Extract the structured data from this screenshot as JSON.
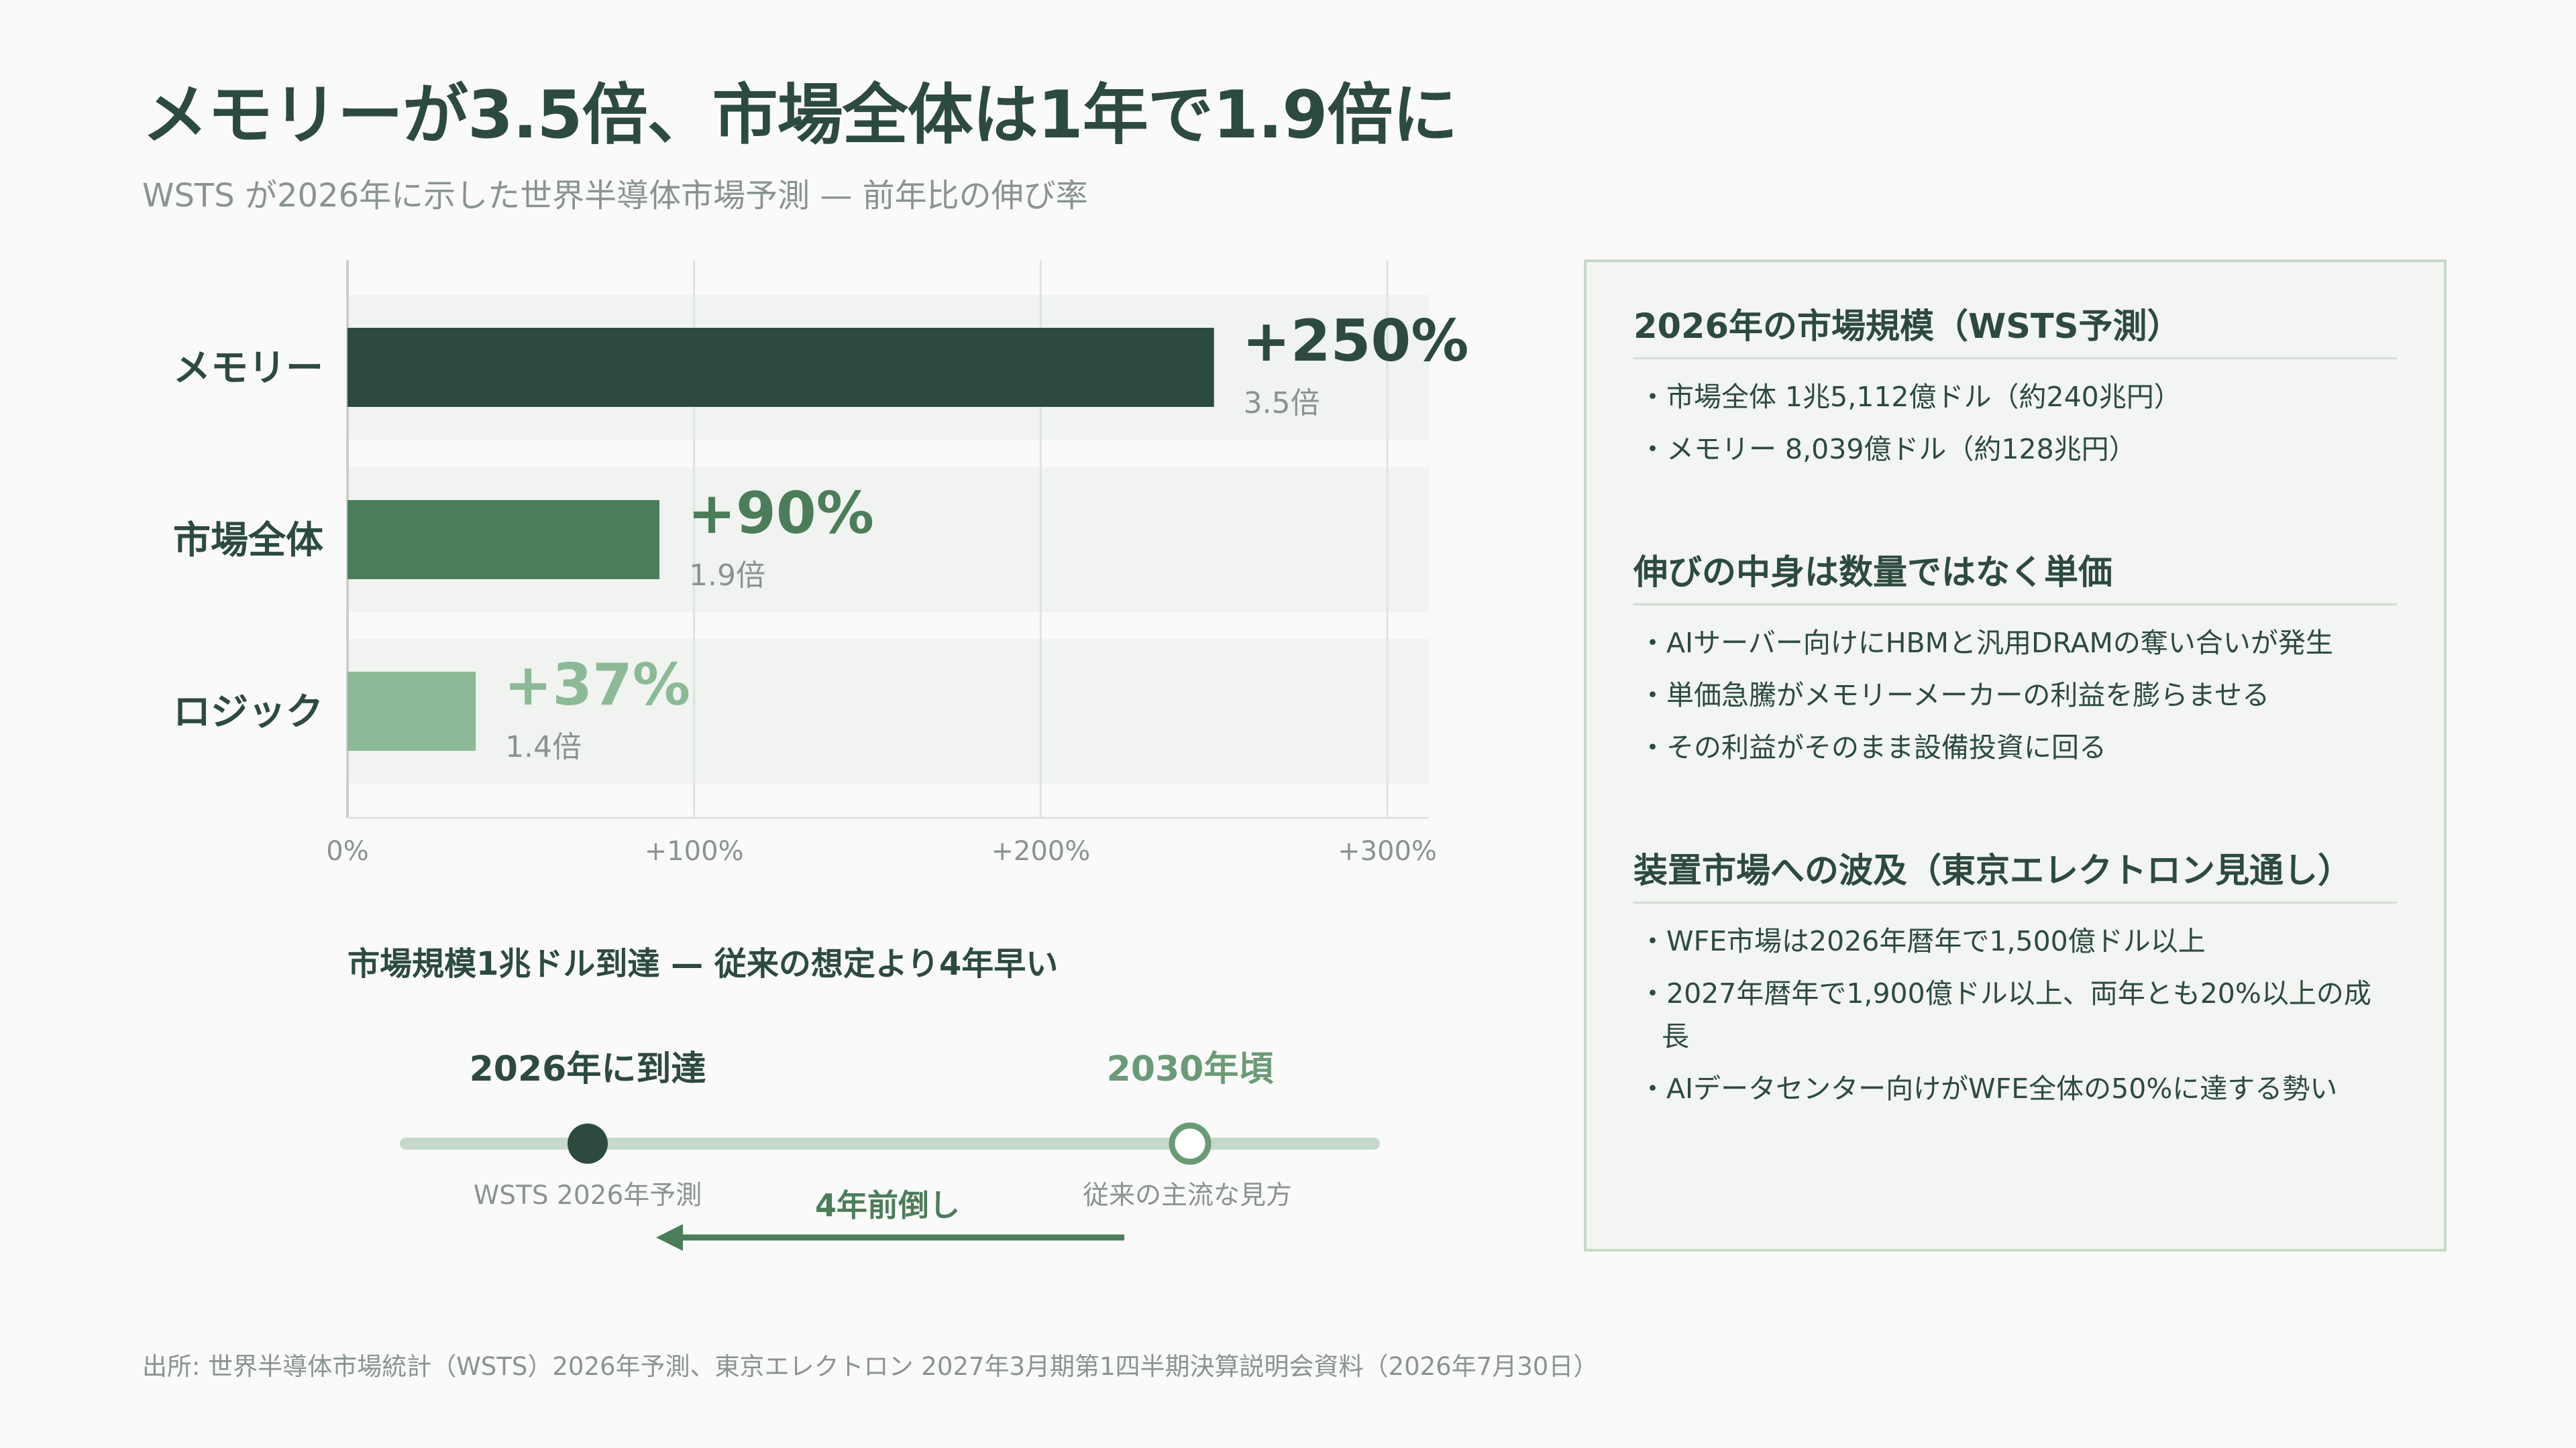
{
  "page": {
    "title": "メモリーが3.5倍、市場全体は1年で1.9倍に",
    "subtitle": "WSTS が2026年に示した世界半導体市場予測 — 前年比の伸び率"
  },
  "colors": {
    "dark_green": "#2d4a3e",
    "mid_green": "#4c7d5a",
    "light_green": "#8cba96",
    "muted_text": "#8a948f",
    "track": "#c7d9cb"
  },
  "chart_data": {
    "type": "bar",
    "orientation": "horizontal",
    "categories": [
      "メモリー",
      "市場全体",
      "ロジック"
    ],
    "values": [
      250,
      90,
      37
    ],
    "value_labels": [
      "+250%",
      "+90%",
      "+37%"
    ],
    "multiplier_labels": [
      "3.5倍",
      "1.9倍",
      "1.4倍"
    ],
    "bar_colors": [
      "#2d4a3e",
      "#4c7d5a",
      "#8cba96"
    ],
    "xlim": [
      0,
      300
    ],
    "xticks": [
      0,
      100,
      200,
      300
    ],
    "xtick_labels": [
      "0%",
      "+100%",
      "+200%",
      "+300%"
    ],
    "grid": true
  },
  "timeline": {
    "heading": "市場規模1兆ドル到達 — 従来の想定より4年早い",
    "left_label": "2026年に到達",
    "left_caption": "WSTS 2026年予測",
    "right_label": "2030年頃",
    "right_caption": "従来の主流な見方",
    "shift_label": "4年前倒し"
  },
  "panel": {
    "sections": [
      {
        "heading": "2026年の市場規模（WSTS予測）",
        "items": [
          "市場全体 1兆5,112億ドル（約240兆円）",
          "メモリー 8,039億ドル（約128兆円）"
        ]
      },
      {
        "heading": "伸びの中身は数量ではなく単価",
        "items": [
          "AIサーバー向けにHBMと汎用DRAMの奪い合いが発生",
          "単価急騰がメモリーメーカーの利益を膨らませる",
          "その利益がそのまま設備投資に回る"
        ]
      },
      {
        "heading": "装置市場への波及（東京エレクトロン見通し）",
        "items": [
          "WFE市場は2026年暦年で1,500億ドル以上",
          "2027年暦年で1,900億ドル以上、両年とも20%以上の成長",
          "AIデータセンター向けがWFE全体の50%に達する勢い"
        ]
      }
    ]
  },
  "source": "出所: 世界半導体市場統計（WSTS）2026年予測、東京エレクトロン 2027年3月期第1四半期決算説明会資料（2026年7月30日）"
}
